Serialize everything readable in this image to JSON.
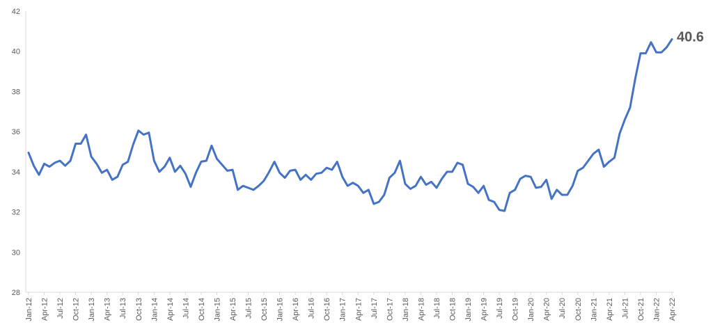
{
  "chart_data": {
    "type": "line",
    "title": "",
    "xlabel": "",
    "ylabel": "",
    "ylim": [
      28,
      42
    ],
    "yticks": [
      28,
      30,
      32,
      34,
      36,
      38,
      40,
      42
    ],
    "grid": false,
    "legend": "none",
    "line_color": "#4472C4",
    "end_label": "40.6",
    "x": [
      "Jan-12",
      "Feb-12",
      "Mar-12",
      "Apr-12",
      "May-12",
      "Jun-12",
      "Jul-12",
      "Aug-12",
      "Sep-12",
      "Oct-12",
      "Nov-12",
      "Dec-12",
      "Jan-13",
      "Feb-13",
      "Mar-13",
      "Apr-13",
      "May-13",
      "Jun-13",
      "Jul-13",
      "Aug-13",
      "Sep-13",
      "Oct-13",
      "Nov-13",
      "Dec-13",
      "Jan-14",
      "Feb-14",
      "Mar-14",
      "Apr-14",
      "May-14",
      "Jun-14",
      "Jul-14",
      "Aug-14",
      "Sep-14",
      "Oct-14",
      "Nov-14",
      "Dec-14",
      "Jan-15",
      "Feb-15",
      "Mar-15",
      "Apr-15",
      "May-15",
      "Jun-15",
      "Jul-15",
      "Aug-15",
      "Sep-15",
      "Oct-15",
      "Nov-15",
      "Dec-15",
      "Jan-16",
      "Feb-16",
      "Mar-16",
      "Apr-16",
      "May-16",
      "Jun-16",
      "Jul-16",
      "Aug-16",
      "Sep-16",
      "Oct-16",
      "Nov-16",
      "Dec-16",
      "Jan-17",
      "Feb-17",
      "Mar-17",
      "Apr-17",
      "May-17",
      "Jun-17",
      "Jul-17",
      "Aug-17",
      "Sep-17",
      "Oct-17",
      "Nov-17",
      "Dec-17",
      "Jan-18",
      "Feb-18",
      "Mar-18",
      "Apr-18",
      "May-18",
      "Jun-18",
      "Jul-18",
      "Aug-18",
      "Sep-18",
      "Oct-18",
      "Nov-18",
      "Dec-18",
      "Jan-19",
      "Feb-19",
      "Mar-19",
      "Apr-19",
      "May-19",
      "Jun-19",
      "Jul-19",
      "Aug-19",
      "Sep-19",
      "Oct-19",
      "Nov-19",
      "Dec-19",
      "Jan-20",
      "Feb-20",
      "Mar-20",
      "Apr-20",
      "May-20",
      "Jun-20",
      "Jul-20",
      "Aug-20",
      "Sep-20",
      "Oct-20",
      "Nov-20",
      "Dec-20",
      "Jan-21",
      "Feb-21",
      "Mar-21",
      "Apr-21",
      "May-21",
      "Jun-21",
      "Jul-21",
      "Aug-21",
      "Sep-21",
      "Oct-21",
      "Nov-21",
      "Dec-21",
      "Jan-22",
      "Feb-22",
      "Mar-22",
      "Apr-22"
    ],
    "xtick_labels": [
      "Jan-12",
      "Apr-12",
      "Jul-12",
      "Oct-12",
      "Jan-13",
      "Apr-13",
      "Jul-13",
      "Oct-13",
      "Jan-14",
      "Apr-14",
      "Jul-14",
      "Oct-14",
      "Jan-15",
      "Apr-15",
      "Jul-15",
      "Oct-15",
      "Jan-16",
      "Apr-16",
      "Jul-16",
      "Oct-16",
      "Jan-17",
      "Apr-17",
      "Jul-17",
      "Oct-17",
      "Jan-18",
      "Apr-18",
      "Jul-18",
      "Oct-18",
      "Jan-19",
      "Apr-19",
      "Jul-19",
      "Oct-19",
      "Jan-20",
      "Apr-20",
      "Jul-20",
      "Oct-20",
      "Jan-21",
      "Apr-21",
      "Jul-21",
      "Oct-21",
      "Jan-22",
      "Apr-22"
    ],
    "values": [
      34.95,
      34.3,
      33.85,
      34.4,
      34.25,
      34.45,
      34.55,
      34.3,
      34.55,
      35.4,
      35.4,
      35.85,
      34.75,
      34.4,
      33.95,
      34.1,
      33.6,
      33.75,
      34.35,
      34.5,
      35.35,
      36.05,
      35.85,
      35.95,
      34.55,
      34.0,
      34.25,
      34.7,
      34.0,
      34.3,
      33.9,
      33.25,
      33.95,
      34.5,
      34.55,
      35.3,
      34.65,
      34.35,
      34.05,
      34.1,
      33.1,
      33.3,
      33.2,
      33.1,
      33.3,
      33.55,
      34.0,
      34.5,
      33.95,
      33.7,
      34.05,
      34.1,
      33.6,
      33.85,
      33.6,
      33.9,
      33.95,
      34.2,
      34.1,
      34.5,
      33.75,
      33.3,
      33.45,
      33.3,
      32.95,
      33.1,
      32.4,
      32.5,
      32.85,
      33.7,
      33.95,
      34.55,
      33.4,
      33.15,
      33.3,
      33.75,
      33.35,
      33.5,
      33.2,
      33.65,
      34.0,
      34.0,
      34.45,
      34.35,
      33.4,
      33.25,
      32.95,
      33.3,
      32.6,
      32.5,
      32.1,
      32.05,
      32.95,
      33.1,
      33.65,
      33.8,
      33.75,
      33.2,
      33.25,
      33.6,
      32.65,
      33.1,
      32.85,
      32.85,
      33.3,
      34.05,
      34.2,
      34.55,
      34.9,
      35.1,
      34.25,
      34.5,
      34.7,
      35.9,
      36.6,
      37.2,
      38.65,
      39.9,
      39.9,
      40.45,
      39.95,
      39.95,
      40.2,
      40.6
    ]
  }
}
